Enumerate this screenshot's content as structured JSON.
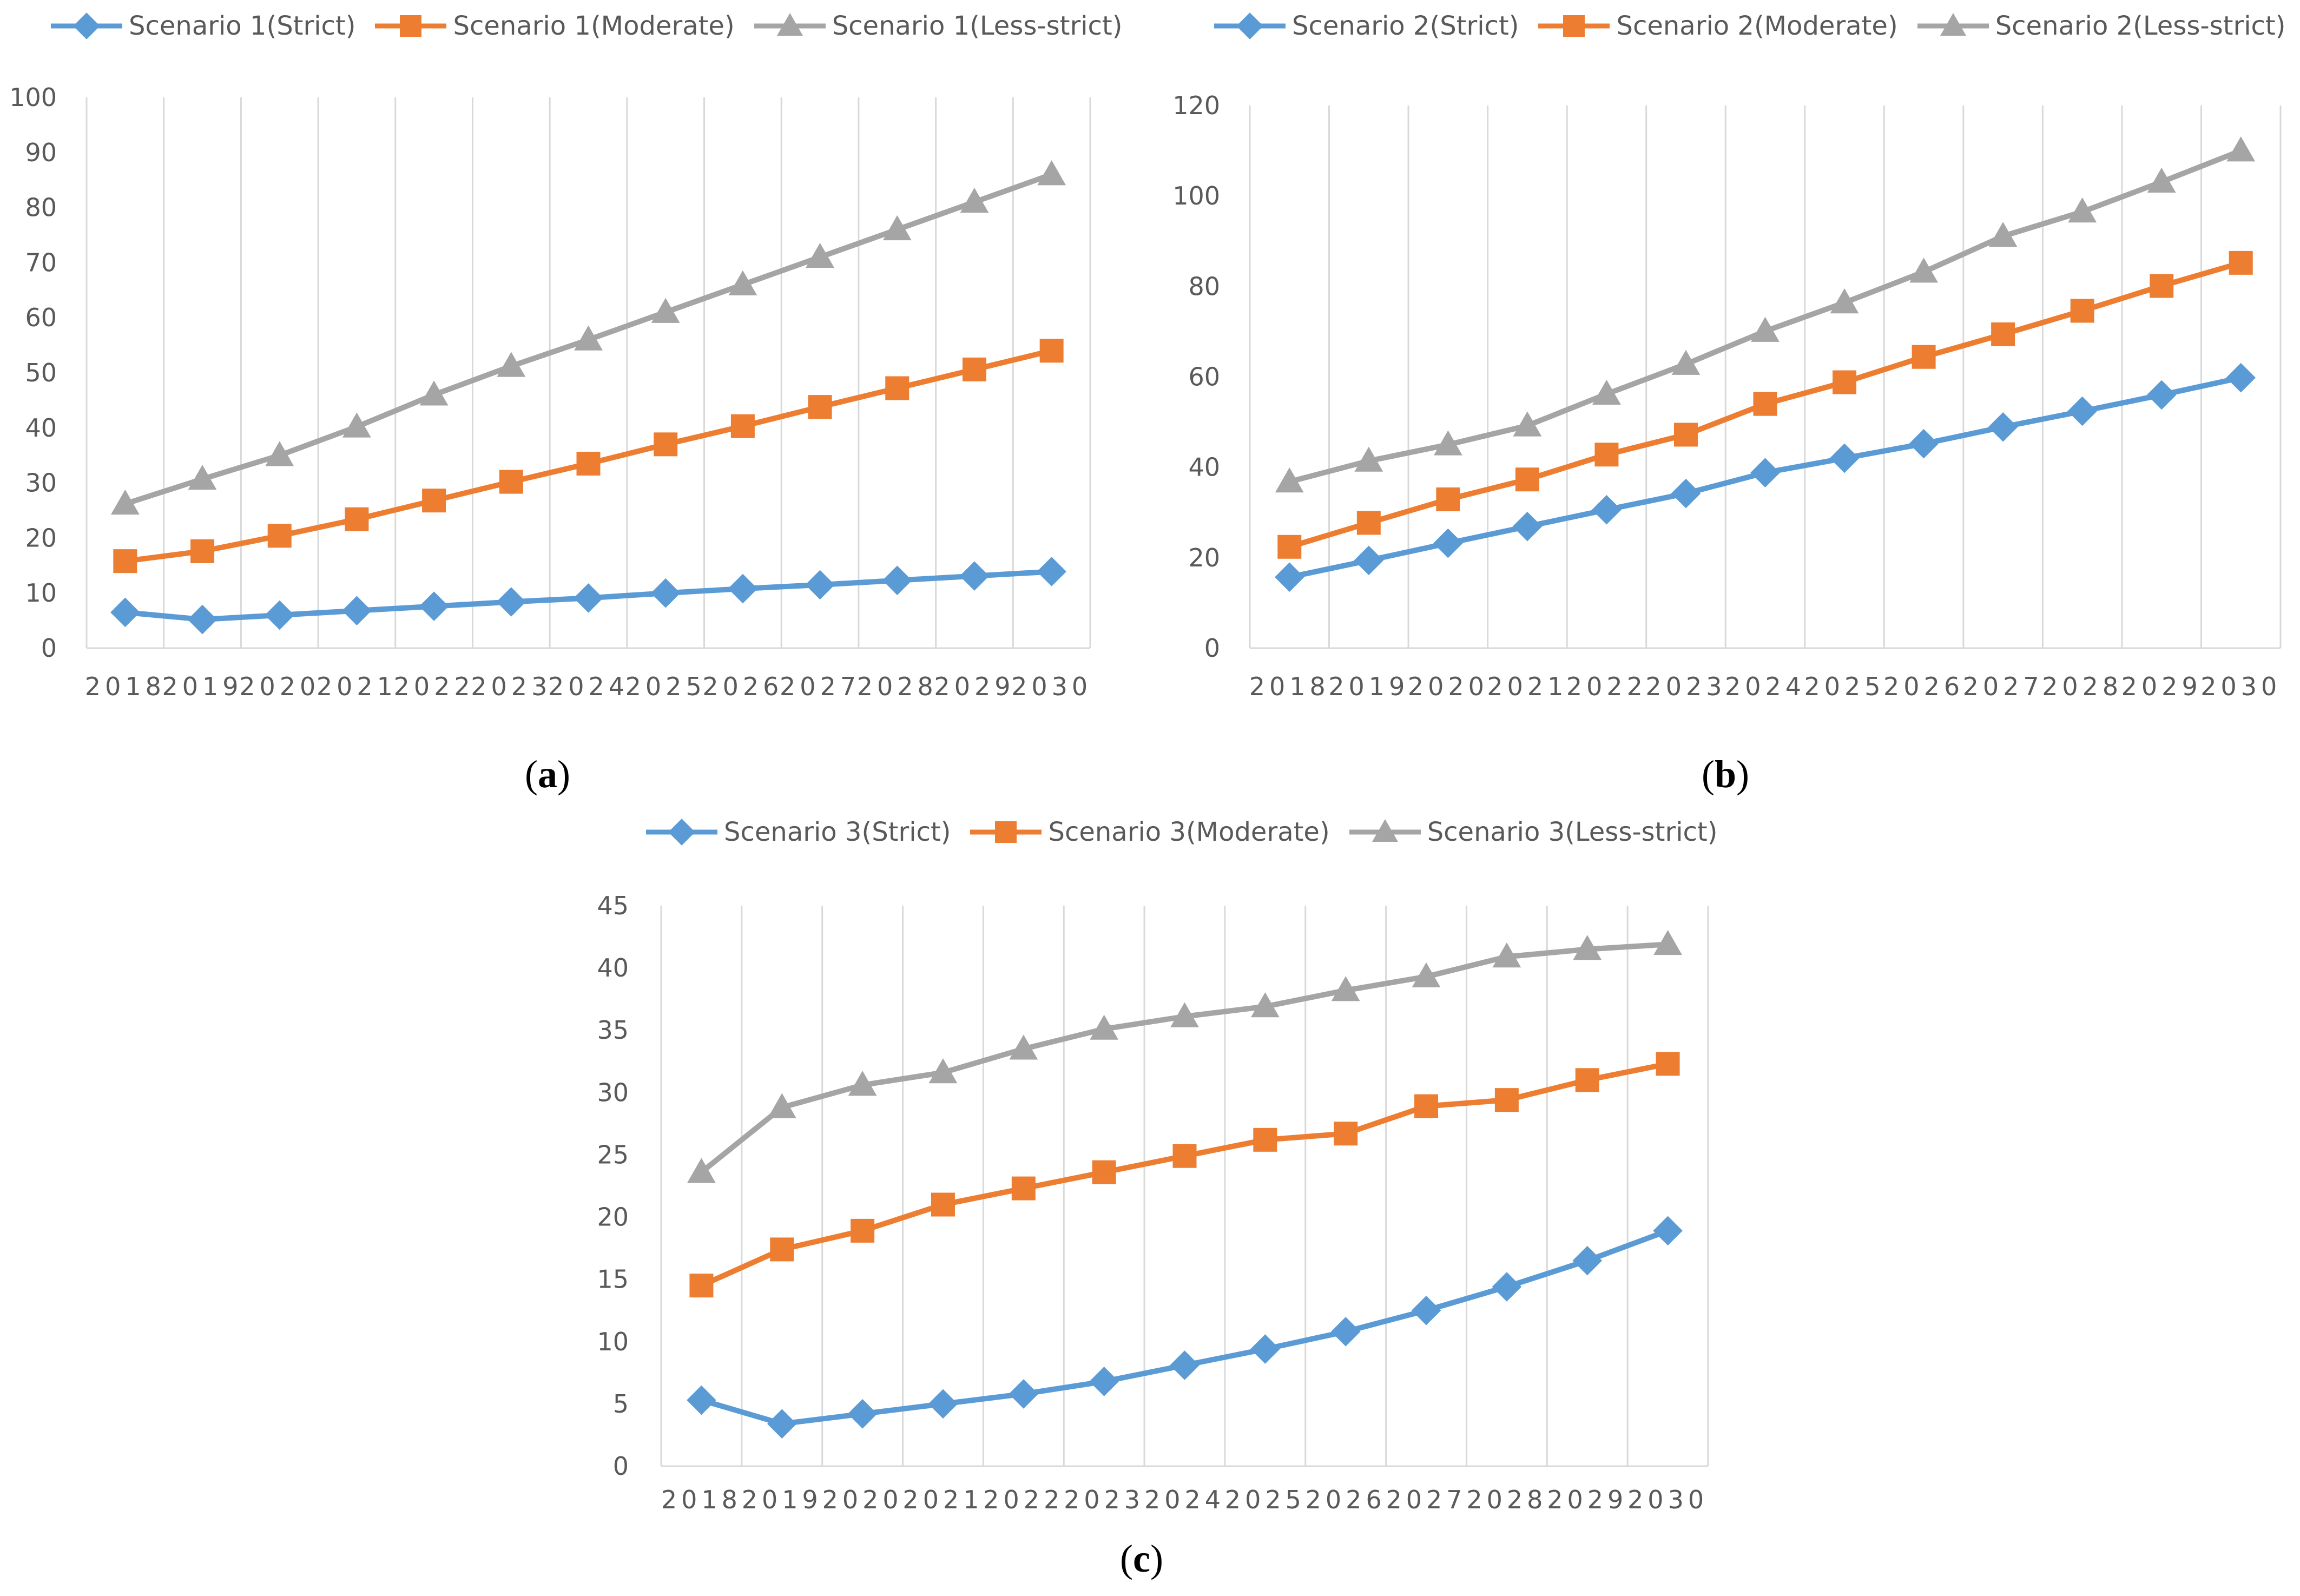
{
  "chart_data": [
    {
      "type": "line",
      "panel_label": "a",
      "categories": [
        "2018",
        "2019",
        "2020",
        "2021",
        "2022",
        "2023",
        "2024",
        "2025",
        "2026",
        "2027",
        "2028",
        "2029",
        "2030"
      ],
      "ylim": [
        0,
        100
      ],
      "yticks": [
        0,
        10,
        20,
        30,
        40,
        50,
        60,
        70,
        80,
        90,
        100
      ],
      "grid": "vertical",
      "legend_position": "top",
      "series": [
        {
          "name": "Scenario 1(Strict)",
          "color": "#5B9BD5",
          "marker": "diamond",
          "values": [
            6.5,
            5.2,
            6.0,
            6.8,
            7.6,
            8.4,
            9.1,
            10.0,
            10.8,
            11.5,
            12.3,
            13.1,
            13.9
          ]
        },
        {
          "name": "Scenario 1(Moderate)",
          "color": "#ED7D31",
          "marker": "square",
          "values": [
            15.8,
            17.6,
            20.4,
            23.4,
            26.8,
            30.2,
            33.5,
            37.0,
            40.3,
            43.8,
            47.2,
            50.6,
            54.0
          ]
        },
        {
          "name": "Scenario 1(Less-strict)",
          "color": "#A5A5A5",
          "marker": "triangle",
          "values": [
            26.2,
            30.7,
            35.0,
            40.2,
            46.0,
            51.2,
            56.0,
            61.0,
            66.0,
            71.0,
            76.0,
            81.0,
            86.0
          ]
        }
      ]
    },
    {
      "type": "line",
      "panel_label": "b",
      "categories": [
        "2018",
        "2019",
        "2020",
        "2021",
        "2022",
        "2023",
        "2024",
        "2025",
        "2026",
        "2027",
        "2028",
        "2029",
        "2030"
      ],
      "ylim": [
        0,
        120
      ],
      "yticks": [
        0,
        20,
        40,
        60,
        80,
        100,
        120
      ],
      "grid": "vertical",
      "legend_position": "top",
      "series": [
        {
          "name": "Scenario 2(Strict)",
          "color": "#5B9BD5",
          "marker": "diamond",
          "values": [
            15.7,
            19.4,
            23.2,
            26.9,
            30.6,
            34.2,
            38.8,
            42.0,
            45.2,
            48.9,
            52.4,
            56.0,
            59.8
          ]
        },
        {
          "name": "Scenario 2(Moderate)",
          "color": "#ED7D31",
          "marker": "square",
          "values": [
            22.4,
            27.7,
            32.9,
            37.3,
            42.8,
            47.2,
            54.0,
            58.8,
            64.4,
            69.4,
            74.6,
            80.1,
            85.2
          ]
        },
        {
          "name": "Scenario 2(Less-strict)",
          "color": "#A5A5A5",
          "marker": "triangle",
          "values": [
            36.8,
            41.4,
            45.0,
            49.2,
            56.2,
            62.8,
            70.1,
            76.4,
            83.2,
            91.1,
            96.5,
            103.1,
            110.0
          ]
        }
      ]
    },
    {
      "type": "line",
      "panel_label": "c",
      "categories": [
        "2018",
        "2019",
        "2020",
        "2021",
        "2022",
        "2023",
        "2024",
        "2025",
        "2026",
        "2027",
        "2028",
        "2029",
        "2030"
      ],
      "ylim": [
        0,
        45
      ],
      "yticks": [
        0,
        5,
        10,
        15,
        20,
        25,
        30,
        35,
        40,
        45
      ],
      "grid": "vertical",
      "legend_position": "top",
      "series": [
        {
          "name": "Scenario 3(Strict)",
          "color": "#5B9BD5",
          "marker": "diamond",
          "values": [
            5.3,
            3.4,
            4.2,
            5.0,
            5.8,
            6.8,
            8.1,
            9.4,
            10.8,
            12.5,
            14.4,
            16.5,
            18.9
          ]
        },
        {
          "name": "Scenario 3(Moderate)",
          "color": "#ED7D31",
          "marker": "square",
          "values": [
            14.5,
            17.4,
            18.9,
            21.0,
            22.3,
            23.6,
            24.9,
            26.2,
            26.7,
            28.9,
            29.4,
            31.0,
            32.3
          ]
        },
        {
          "name": "Scenario 3(Less-strict)",
          "color": "#A5A5A5",
          "marker": "triangle",
          "values": [
            23.6,
            28.8,
            30.6,
            31.6,
            33.5,
            35.1,
            36.1,
            36.9,
            38.2,
            39.3,
            40.9,
            41.5,
            41.9
          ]
        }
      ]
    }
  ]
}
